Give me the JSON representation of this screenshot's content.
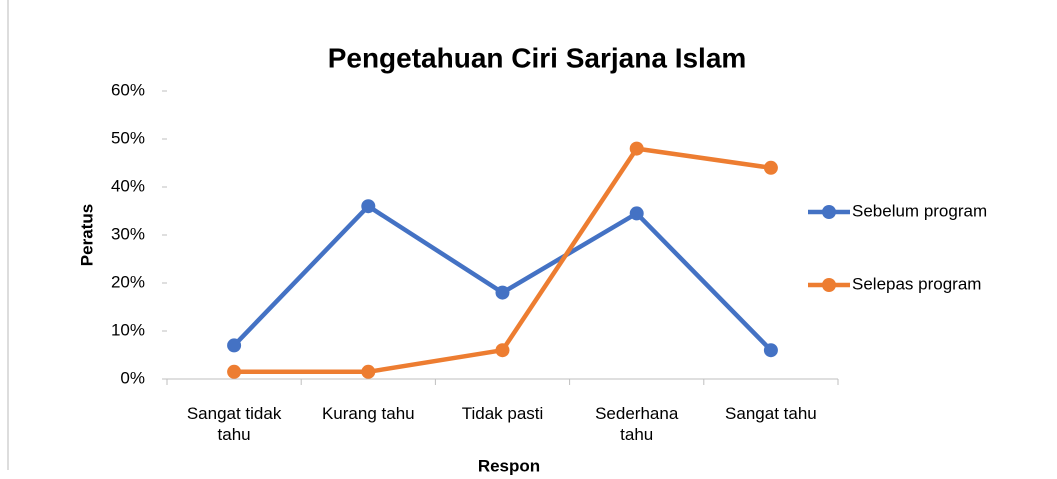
{
  "chart_data": {
    "type": "line",
    "title": "Pengetahuan Ciri Sarjana Islam",
    "x_label": "Respon",
    "y_label": "Peratus",
    "categories": [
      "Sangat tidak tahu",
      "Kurang tahu",
      "Tidak pasti",
      "Sederhana tahu",
      "Sangat tahu"
    ],
    "series": [
      {
        "name": "Sebelum program",
        "color": "#4472c4",
        "values": [
          7,
          36,
          18,
          34.5,
          6
        ]
      },
      {
        "name": "Selepas program",
        "color": "#ed7d31",
        "values": [
          1.5,
          1.5,
          6,
          48,
          44
        ]
      }
    ],
    "ylim": [
      0,
      60
    ],
    "yticks": [
      {
        "value": 0,
        "label": "0%"
      },
      {
        "value": 10,
        "label": "10%"
      },
      {
        "value": 20,
        "label": "20%"
      },
      {
        "value": 30,
        "label": "30%"
      },
      {
        "value": 40,
        "label": "40%"
      },
      {
        "value": 50,
        "label": "50%"
      },
      {
        "value": 60,
        "label": "60%"
      }
    ],
    "legend": "right"
  }
}
